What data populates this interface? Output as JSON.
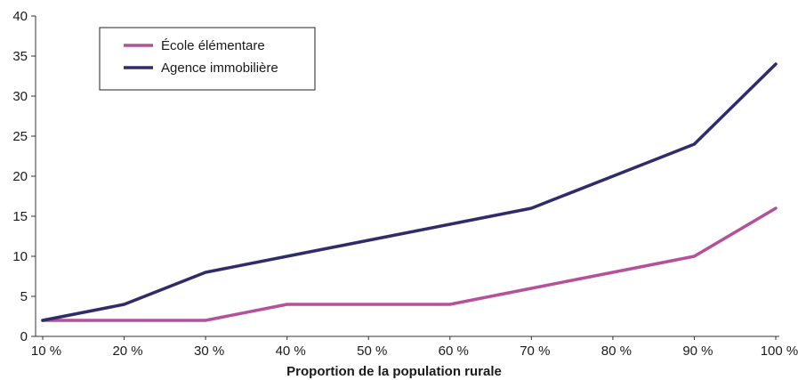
{
  "chart_data": {
    "type": "line",
    "xlabel": "Proportion de la population rurale",
    "ylabel": "",
    "categories": [
      "10 %",
      "20 %",
      "30 %",
      "40 %",
      "50 %",
      "60 %",
      "70 %",
      "80 %",
      "90 %",
      "100 %"
    ],
    "ylim": [
      0,
      40
    ],
    "yticks": [
      0,
      5,
      10,
      15,
      20,
      25,
      30,
      35,
      40
    ],
    "grid": false,
    "legend_position": "top-left",
    "series": [
      {
        "name": "École élémentare",
        "color": "#b5519b",
        "values": [
          2,
          2,
          2,
          4,
          4,
          4,
          6,
          8,
          10,
          16
        ]
      },
      {
        "name": "Agence immobilière",
        "color": "#2e2c69",
        "values": [
          2,
          4,
          8,
          10,
          12,
          14,
          16,
          20,
          24,
          34
        ]
      }
    ]
  }
}
